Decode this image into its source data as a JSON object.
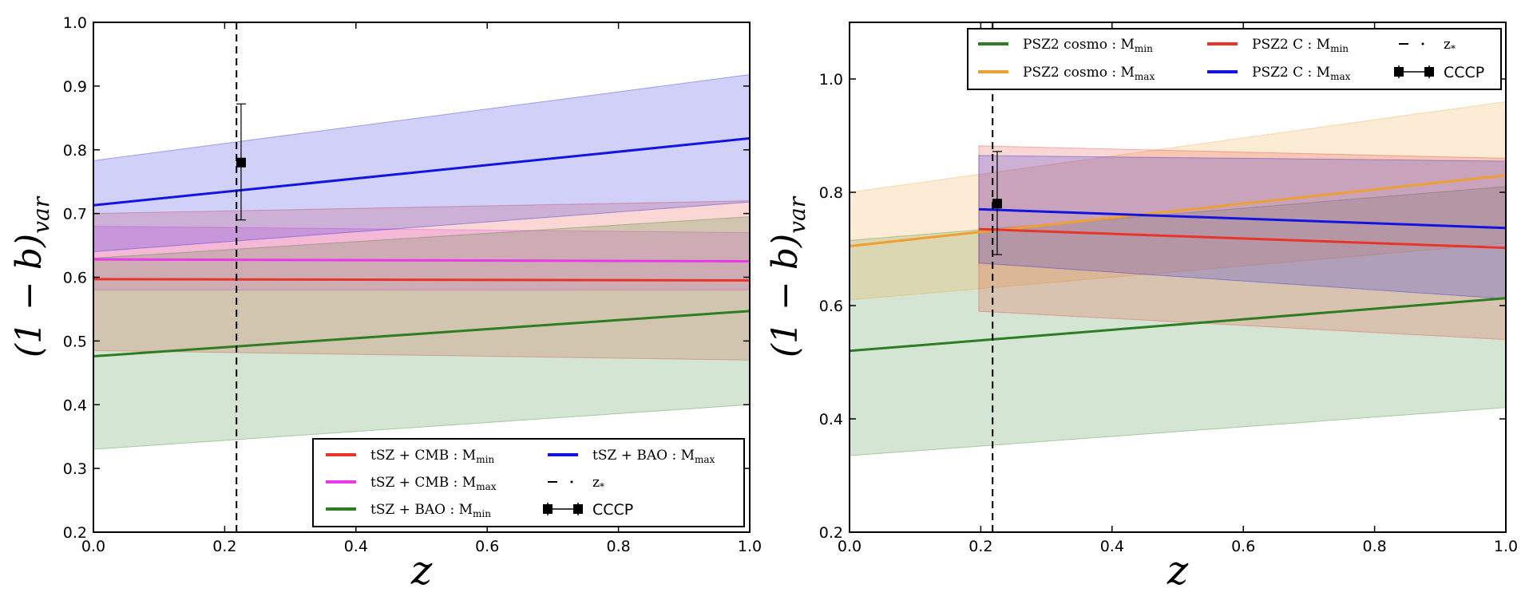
{
  "chart_data": [
    {
      "type": "line",
      "panel": "left",
      "xlim": [
        0.0,
        1.0
      ],
      "ylim": [
        0.2,
        1.0
      ],
      "xticks": [
        "0.0",
        "0.2",
        "0.4",
        "0.6",
        "0.8",
        "1.0"
      ],
      "yticks": [
        "0.2",
        "0.3",
        "0.4",
        "0.5",
        "0.6",
        "0.7",
        "0.8",
        "0.9",
        "1.0"
      ],
      "xlabel": "z",
      "ylabel": {
        "main": "(1 − b)",
        "sub": "var"
      },
      "legend_position": "bottom-right",
      "series": [
        {
          "name": "tSZ + CMB : M",
          "sub": "min",
          "color": "#e8352a",
          "x_start": 0.0,
          "x_end": 1.0,
          "y_start": 0.597,
          "y_end": 0.595,
          "band_lo": [
            0.485,
            0.47
          ],
          "band_hi": [
            0.7,
            0.72
          ]
        },
        {
          "name": "tSZ + CMB : M",
          "sub": "max",
          "color": "#e83ae8",
          "x_start": 0.0,
          "x_end": 1.0,
          "y_start": 0.628,
          "y_end": 0.625,
          "band_lo": [
            0.58,
            0.58
          ],
          "band_hi": [
            0.68,
            0.67
          ]
        },
        {
          "name": "tSZ + BAO : M",
          "sub": "min",
          "color": "#2e7d22",
          "x_start": 0.0,
          "x_end": 1.0,
          "y_start": 0.476,
          "y_end": 0.547,
          "band_lo": [
            0.33,
            0.4
          ],
          "band_hi": [
            0.63,
            0.695
          ]
        },
        {
          "name": "tSZ + BAO : M",
          "sub": "max",
          "color": "#1414e0",
          "x_start": 0.0,
          "x_end": 1.0,
          "y_start": 0.713,
          "y_end": 0.818,
          "band_lo": [
            0.64,
            0.718
          ],
          "band_hi": [
            0.783,
            0.918
          ]
        }
      ],
      "vline": {
        "label": "z",
        "sub": "*",
        "x": 0.218
      },
      "points": [
        {
          "label": "CCCP",
          "x": 0.225,
          "y": 0.78,
          "yerr_lo": 0.69,
          "yerr_hi": 0.872
        }
      ]
    },
    {
      "type": "line",
      "panel": "right",
      "xlim": [
        0.0,
        1.0
      ],
      "ylim": [
        0.2,
        1.1
      ],
      "xticks": [
        "0.0",
        "0.2",
        "0.4",
        "0.6",
        "0.8",
        "1.0"
      ],
      "yticks": [
        "0.2",
        "0.4",
        "0.6",
        "0.8",
        "1.0"
      ],
      "xlabel": "z",
      "ylabel": {
        "main": "(1 − b)",
        "sub": "var"
      },
      "legend_position": "top-right",
      "series": [
        {
          "name": "PSZ2 cosmo : M",
          "sub": "min",
          "color": "#2e7d22",
          "x_start": 0.0,
          "x_end": 1.0,
          "y_start": 0.52,
          "y_end": 0.613,
          "band_lo": [
            0.335,
            0.42
          ],
          "band_hi": [
            0.715,
            0.81
          ]
        },
        {
          "name": "PSZ2 cosmo : M",
          "sub": "max",
          "color": "#f0a030",
          "x_start": 0.0,
          "x_end": 1.0,
          "y_start": 0.705,
          "y_end": 0.83,
          "band_lo": [
            0.61,
            0.71
          ],
          "band_hi": [
            0.8,
            0.96
          ]
        },
        {
          "name": "PSZ2 C : M",
          "sub": "min",
          "color": "#e8352a",
          "x_start": 0.197,
          "x_end": 1.0,
          "y_start": 0.735,
          "y_end": 0.702,
          "band_lo": [
            0.59,
            0.54
          ],
          "band_hi": [
            0.882,
            0.86
          ]
        },
        {
          "name": "PSZ2 C : M",
          "sub": "max",
          "color": "#1414e0",
          "x_start": 0.197,
          "x_end": 1.0,
          "y_start": 0.77,
          "y_end": 0.737,
          "band_lo": [
            0.675,
            0.612
          ],
          "band_hi": [
            0.865,
            0.855
          ]
        }
      ],
      "vline": {
        "label": "z",
        "sub": "*",
        "x": 0.218
      },
      "points": [
        {
          "label": "CCCP",
          "x": 0.225,
          "y": 0.78,
          "yerr_lo": 0.69,
          "yerr_hi": 0.872
        }
      ]
    }
  ]
}
